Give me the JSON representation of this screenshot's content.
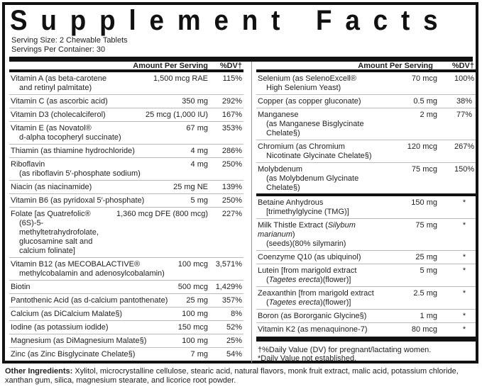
{
  "title": "Supplement Facts",
  "title_letters": [
    "S",
    "u",
    "p",
    "p",
    "l",
    "e",
    "m",
    "e",
    "n",
    "t",
    " ",
    "F",
    "a",
    "c",
    "t",
    "s"
  ],
  "serving_size": "Serving Size: 2 Chewable Tablets",
  "servings_per_container": "Servings Per Container: 30",
  "header": {
    "amount_label": "Amount Per Serving",
    "dv_label": "%DV†"
  },
  "left_rows": [
    {
      "name": "Vitamin A (as beta-carotene",
      "sub": "and retinyl palmitate)",
      "amount": "1,500 mcg RAE",
      "dv": "115%"
    },
    {
      "name": "Vitamin C (as ascorbic acid)",
      "sub": "",
      "amount": "350 mg",
      "dv": "292%"
    },
    {
      "name": "Vitamin D3 (cholecalciferol)",
      "sub": "",
      "amount": "25 mcg (1,000 IU)",
      "dv": "167%"
    },
    {
      "name": "Vitamin E (as Novatol®",
      "sub": "d-alpha tocopheryl succinate)",
      "amount": "67 mg",
      "dv": "353%"
    },
    {
      "name": "Thiamin (as thiamine hydrochloride)",
      "sub": "",
      "amount": "4 mg",
      "dv": "286%"
    },
    {
      "name": "Riboflavin",
      "sub": "(as riboflavin 5′-phosphate sodium)",
      "amount": "4 mg",
      "dv": "250%"
    },
    {
      "name": "Niacin (as niacinamide)",
      "sub": "",
      "amount": "25 mg NE",
      "dv": "139%"
    },
    {
      "name": "Vitamin B6 (as pyridoxal 5′-phosphate)",
      "sub": "",
      "amount": "5 mg",
      "dv": "250%"
    },
    {
      "name": "Folate [as Quatrefolic®",
      "sub": "(6S)-5-methyltetrahydrofolate,",
      "sub2": "glucosamine salt and calcium folinate]",
      "amount": "1,360 mcg DFE (800 mcg)",
      "dv": "227%"
    },
    {
      "name": "Vitamin B12 (as MECOBALACTIVE®",
      "sub": "methylcobalamin and adenosylcobalamin)",
      "amount": "100 mcg",
      "dv": "3,571%"
    },
    {
      "name": "Biotin",
      "sub": "",
      "amount": "500 mcg",
      "dv": "1,429%"
    },
    {
      "name": "Pantothenic Acid (as d-calcium pantothenate)",
      "sub": "",
      "amount": "25 mg",
      "dv": "357%"
    },
    {
      "name": "Calcium (as DiCalcium Malate§)",
      "sub": "",
      "amount": "100 mg",
      "dv": "8%"
    },
    {
      "name": "Iodine (as potassium iodide)",
      "sub": "",
      "amount": "150 mcg",
      "dv": "52%"
    },
    {
      "name": "Magnesium (as DiMagnesium Malate§)",
      "sub": "",
      "amount": "100 mg",
      "dv": "25%"
    },
    {
      "name": "Zinc (as Zinc Bisglycinate Chelate§)",
      "sub": "",
      "amount": "7 mg",
      "dv": "54%"
    }
  ],
  "right_rows": [
    {
      "name": "Selenium (as SelenoExcell®",
      "sub": "High Selenium Yeast)",
      "amount": "70 mcg",
      "dv": "100%"
    },
    {
      "name": "Copper (as copper gluconate)",
      "sub": "",
      "amount": "0.5 mg",
      "dv": "38%"
    },
    {
      "name": "Manganese",
      "sub": "(as Manganese Bisglycinate Chelate§)",
      "amount": "2 mg",
      "dv": "77%"
    },
    {
      "name": "Chromium (as Chromium",
      "sub": "Nicotinate Glycinate Chelate§)",
      "amount": "120 mcg",
      "dv": "267%"
    },
    {
      "name": "Molybdenum",
      "sub": "(as Molybdenum Glycinate Chelate§)",
      "amount": "75 mcg",
      "dv": "150%"
    }
  ],
  "right_rows_2": [
    {
      "name": "Betaine Anhydrous",
      "sub": "[trimethylglycine (TMG)]",
      "amount": "150 mg",
      "dv": "*"
    },
    {
      "name": "Milk Thistle Extract (",
      "name_italic": "Silybum marianum",
      "name_end": ")",
      "sub": "(seeds)(80% silymarin)",
      "amount": "75 mg",
      "dv": "*"
    },
    {
      "name": "Coenzyme Q10 (as ubiquinol)",
      "sub": "",
      "amount": "25 mg",
      "dv": "*"
    },
    {
      "name": "Lutein [from marigold extract",
      "sub_pre": "(",
      "sub_italic": "Tagetes erecta",
      "sub_post": ")(flower)]",
      "amount": "5 mg",
      "dv": "*"
    },
    {
      "name": "Zeaxanthin [from marigold extract",
      "sub_pre": "(",
      "sub_italic": "Tagetes erecta",
      "sub_post": ")(flower)]",
      "amount": "2.5 mg",
      "dv": "*"
    },
    {
      "name": "Boron (as Bororganic Glycine§)",
      "sub": "",
      "amount": "1 mg",
      "dv": "*"
    },
    {
      "name": "Vitamin K2 (as menaquinone-7)",
      "sub": "",
      "amount": "80 mcg",
      "dv": "*"
    }
  ],
  "footnotes": {
    "dv_note": "†%Daily Value (DV) for pregnant/lactating women.",
    "not_established": "*Daily Value not established."
  },
  "other_ingredients": {
    "label": "Other Ingredients:",
    "text": " Xylitol, microcrystalline cellulose, stearic acid, natural flavors, monk fruit extract, malic acid, potassium chloride, xanthan gum, silica, magnesium stearate, and licorice root powder."
  }
}
